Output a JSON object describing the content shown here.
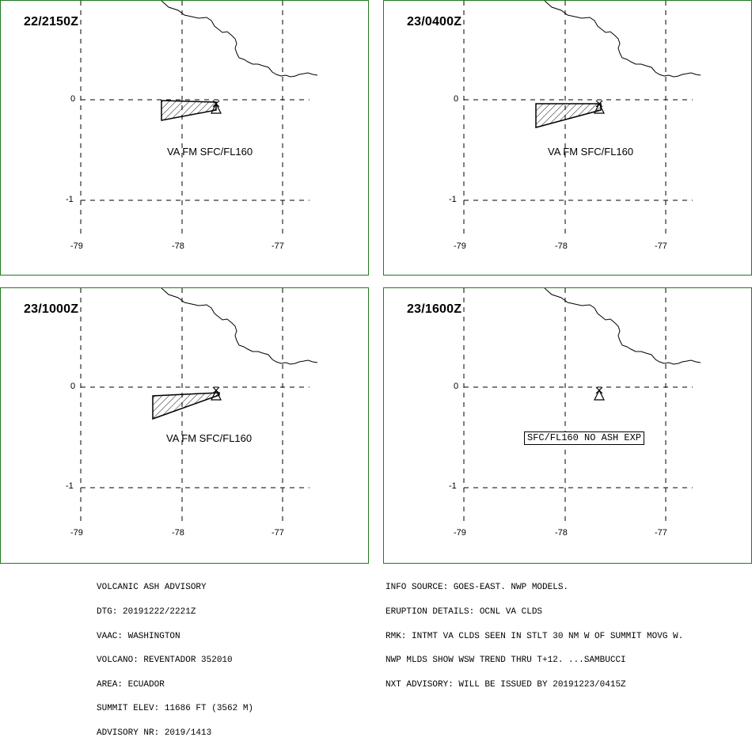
{
  "panels": [
    {
      "time": "22/2150Z",
      "ash_label": "VA FM SFC/FL160",
      "has_ash": true
    },
    {
      "time": "23/0400Z",
      "ash_label": "VA FM SFC/FL160",
      "has_ash": true
    },
    {
      "time": "23/1000Z",
      "ash_label": "VA FM SFC/FL160",
      "has_ash": true
    },
    {
      "time": "23/1600Z",
      "ash_label": "SFC/FL160 NO ASH EXP",
      "has_ash": false
    }
  ],
  "axes": {
    "lon_ticks": [
      "-79",
      "-78",
      "-77"
    ],
    "lat_ticks": [
      "0",
      "-1"
    ]
  },
  "colors": {
    "frame": "#1f7a1f",
    "lines": "#000000"
  },
  "advisory_left": [
    "VOLCANIC ASH ADVISORY",
    "DTG: 20191222/2221Z",
    "VAAC: WASHINGTON",
    "VOLCANO: REVENTADOR 352010",
    "AREA: ECUADOR",
    "SUMMIT ELEV: 11686 FT (3562 M)",
    "ADVISORY NR: 2019/1413"
  ],
  "advisory_right": [
    "INFO SOURCE: GOES-EAST. NWP MODELS.",
    "ERUPTION DETAILS: OCNL VA CLDS",
    "RMK: INTMT VA CLDS SEEN IN STLT 30 NM W OF SUMMIT MOVG W.",
    "NWP MLDS SHOW WSW TREND THRU T+12. ...SAMBUCCI",
    "NXT ADVISORY: WILL BE ISSUED BY 20191223/0415Z"
  ]
}
